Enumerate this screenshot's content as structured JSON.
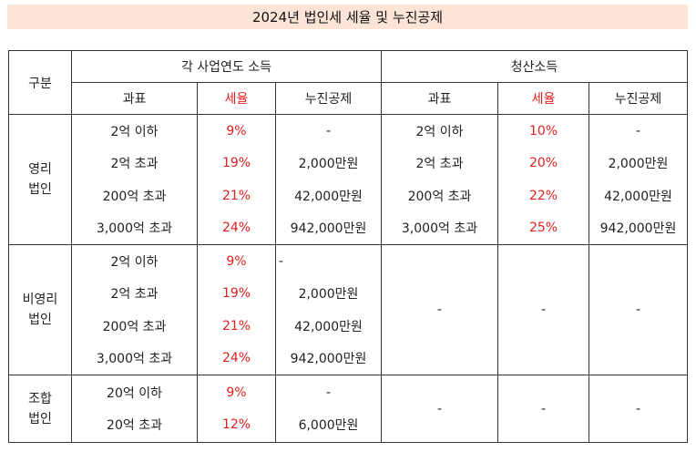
{
  "title": "2024년 법인세 세율 및 누진공제",
  "header": {
    "category": "구분",
    "group_fiscal": "각 사업연도 소득",
    "group_liquidation": "청산소득",
    "col_base": "과표",
    "col_rate": "세율",
    "col_deduction": "누진공제"
  },
  "rows": {
    "profit": {
      "label_line1": "영리",
      "label_line2": "법인",
      "fiscal": {
        "base": [
          "2억 이하",
          "2억 초과",
          "200억 초과",
          "3,000억 초과"
        ],
        "rate": [
          "9%",
          "19%",
          "21%",
          "24%"
        ],
        "deduction": [
          "-",
          "2,000만원",
          "42,000만원",
          "942,000만원"
        ]
      },
      "liquidation": {
        "base": [
          "2억 이하",
          "2억 초과",
          "200억 초과",
          "3,000억 초과"
        ],
        "rate": [
          "10%",
          "20%",
          "22%",
          "25%"
        ],
        "deduction": [
          "-",
          "2,000만원",
          "42,000만원",
          "942,000만원"
        ]
      }
    },
    "nonprofit": {
      "label_line1": "비영리",
      "label_line2": "법인",
      "fiscal": {
        "base": [
          "2억 이하",
          "2억 초과",
          "200억 초과",
          "3,000억 초과"
        ],
        "rate": [
          "9%",
          "19%",
          "21%",
          "24%"
        ],
        "deduction": [
          "-",
          "2,000만원",
          "42,000만원",
          "942,000만원"
        ]
      },
      "liquidation": {
        "base": "-",
        "rate": "-",
        "deduction": "-"
      }
    },
    "union": {
      "label_line1": "조합",
      "label_line2": "법인",
      "fiscal": {
        "base": [
          "20억 이하",
          "20억 초과"
        ],
        "rate": [
          "9%",
          "12%"
        ],
        "deduction": [
          "-",
          "6,000만원"
        ]
      },
      "liquidation": {
        "base": "-",
        "rate": "-",
        "deduction": "-"
      }
    }
  },
  "colors": {
    "title_bg": "#fce4d6",
    "rate_text": "#e02020",
    "border": "#333333"
  }
}
